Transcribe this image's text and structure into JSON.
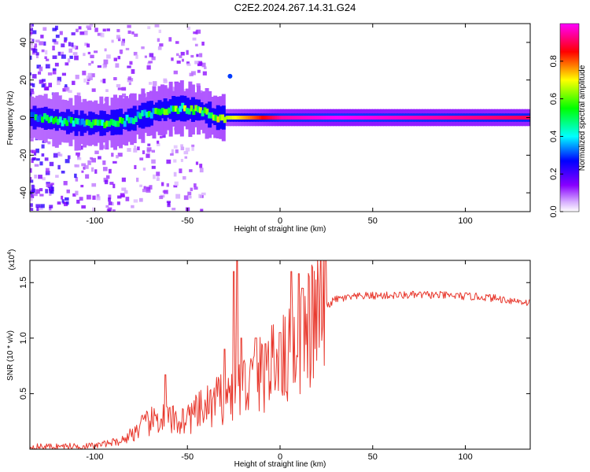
{
  "title": "C2E2.2024.267.14.31.G24",
  "chart_data": [
    {
      "type": "heatmap",
      "xlabel": "Height of straight line (km)",
      "ylabel": "Frequency (Hz)",
      "xlim": [
        -135,
        135
      ],
      "ylim": [
        -50,
        50
      ],
      "x_ticks": [
        -100,
        -50,
        0,
        50,
        100
      ],
      "y_ticks": [
        -40,
        -20,
        0,
        20,
        40
      ],
      "colorbar": {
        "label": "Normalized spectral amplitude",
        "range": [
          0,
          1
        ],
        "ticks": [
          "0.0",
          "0.2",
          "0.4",
          "0.6",
          "0.8"
        ],
        "colormap": "rainbow (violet to red)",
        "colors": [
          "#ffffff",
          "#8800ff",
          "#0000ff",
          "#00ffff",
          "#00ff00",
          "#ffff00",
          "#ff0000",
          "#ff00ff"
        ]
      },
      "ridge": {
        "description_points": [
          {
            "x": -130,
            "freq": 0
          },
          {
            "x": -110,
            "freq": -3
          },
          {
            "x": -95,
            "freq": -3
          },
          {
            "x": -85,
            "freq": -2
          },
          {
            "x": -75,
            "freq": 1
          },
          {
            "x": -65,
            "freq": 4
          },
          {
            "x": -55,
            "freq": 5
          },
          {
            "x": -45,
            "freq": 4
          },
          {
            "x": -35,
            "freq": 0
          },
          {
            "x": -25,
            "freq": 0
          },
          {
            "x": 135,
            "freq": 0
          }
        ],
        "amplitude": [
          {
            "x": -130,
            "a": 0.45
          },
          {
            "x": -90,
            "a": 0.55
          },
          {
            "x": -60,
            "a": 0.6
          },
          {
            "x": -40,
            "a": 0.55
          },
          {
            "x": -25,
            "a": 0.7
          },
          {
            "x": 0,
            "a": 0.95
          },
          {
            "x": 30,
            "a": 1.0
          },
          {
            "x": 135,
            "a": 0.9
          }
        ]
      }
    },
    {
      "type": "line",
      "xlabel": "Height of straight line (km)",
      "ylabel": "SNR (10 * v/v)",
      "y_exponent_label": "(x10",
      "y_exponent_power": "4",
      "y_exponent_close": ")",
      "xlim": [
        -135,
        135
      ],
      "ylim": [
        0,
        1.7
      ],
      "x_ticks": [
        -100,
        -50,
        0,
        50,
        100
      ],
      "y_ticks": [
        0.5,
        1.0,
        1.5
      ],
      "series": [
        {
          "color": "#e8392e",
          "envelope": [
            {
              "x": -135,
              "y": 0.02
            },
            {
              "x": -100,
              "y": 0.03
            },
            {
              "x": -85,
              "y": 0.08
            },
            {
              "x": -75,
              "y": 0.2
            },
            {
              "x": -65,
              "y": 0.28
            },
            {
              "x": -55,
              "y": 0.25
            },
            {
              "x": -45,
              "y": 0.32
            },
            {
              "x": -35,
              "y": 0.42
            },
            {
              "x": -25,
              "y": 0.52
            },
            {
              "x": -15,
              "y": 0.62
            },
            {
              "x": -5,
              "y": 0.72
            },
            {
              "x": 5,
              "y": 0.85
            },
            {
              "x": 15,
              "y": 1.05
            },
            {
              "x": 22,
              "y": 1.25
            },
            {
              "x": 30,
              "y": 1.35
            },
            {
              "x": 45,
              "y": 1.38
            },
            {
              "x": 80,
              "y": 1.39
            },
            {
              "x": 110,
              "y": 1.37
            },
            {
              "x": 135,
              "y": 1.32
            }
          ],
          "spikes": [
            {
              "x": -62,
              "y": 0.67
            },
            {
              "x": -30,
              "y": 0.9
            },
            {
              "x": -25,
              "y": 1.6
            },
            {
              "x": -23,
              "y": 1.7
            },
            {
              "x": -21,
              "y": 1.0
            },
            {
              "x": -13,
              "y": 1.0
            },
            {
              "x": -8,
              "y": 0.95
            },
            {
              "x": 0,
              "y": 1.05
            },
            {
              "x": 6,
              "y": 1.6
            },
            {
              "x": 10,
              "y": 1.58
            },
            {
              "x": 12,
              "y": 1.45
            }
          ]
        }
      ]
    }
  ]
}
